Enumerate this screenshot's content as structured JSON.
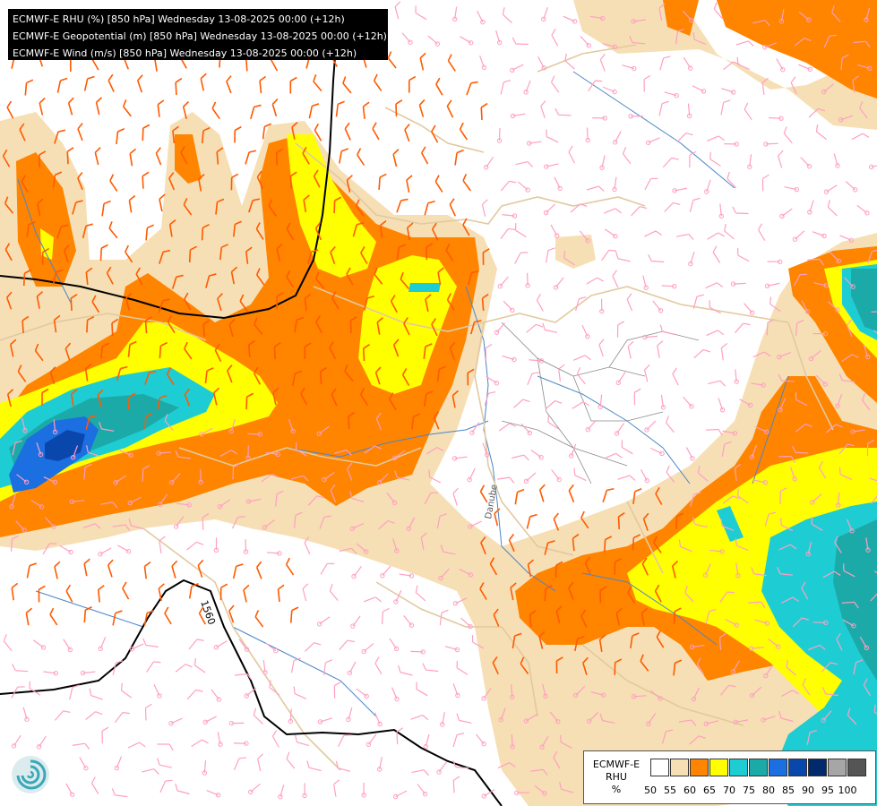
{
  "header": {
    "layers": [
      "ECMWF-E RHU (%) [850 hPa] Wednesday 13-08-2025 00:00 (+12h)",
      "ECMWF-E Geopotential (m) [850 hPa] Wednesday 13-08-2025 00:00 (+12h)",
      "ECMWF-E Wind (m/s) [850 hPa] Wednesday 13-08-2025 00:00 (+12h)"
    ]
  },
  "map": {
    "contour_label": "1560",
    "river_label": "Danube"
  },
  "legend": {
    "title_lines": [
      "ECMWF-E",
      "RHU",
      "%"
    ],
    "bins": [
      {
        "label": "50",
        "color": "#ffffff"
      },
      {
        "label": "55",
        "color": "#f6dfb4"
      },
      {
        "label": "60",
        "color": "#ff8400"
      },
      {
        "label": "65",
        "color": "#ffff00"
      },
      {
        "label": "70",
        "color": "#1ecdd3"
      },
      {
        "label": "75",
        "color": "#1caaa9"
      },
      {
        "label": "80",
        "color": "#1b6fe0"
      },
      {
        "label": "85",
        "color": "#0a47ad"
      },
      {
        "label": "90",
        "color": "#002a6c"
      },
      {
        "label": "95",
        "color": "#a6a6a6"
      },
      {
        "label": "100",
        "color": "#555555"
      }
    ]
  },
  "colors": {
    "rh_55_60": "#f6dfb4",
    "rh_60_65": "#ff8400",
    "rh_65_70": "#ffff00",
    "rh_70_75": "#1ecdd3",
    "rh_75_80": "#1caaa9",
    "rh_80_85": "#1b6fe0",
    "rh_85_90": "#0a47ad",
    "border": "#e2c9a0",
    "river": "#4a86c8",
    "wind_strong": "#ff5a00",
    "wind_weak": "#ff9fc2"
  },
  "logo": "ecmwf-swirl-icon"
}
